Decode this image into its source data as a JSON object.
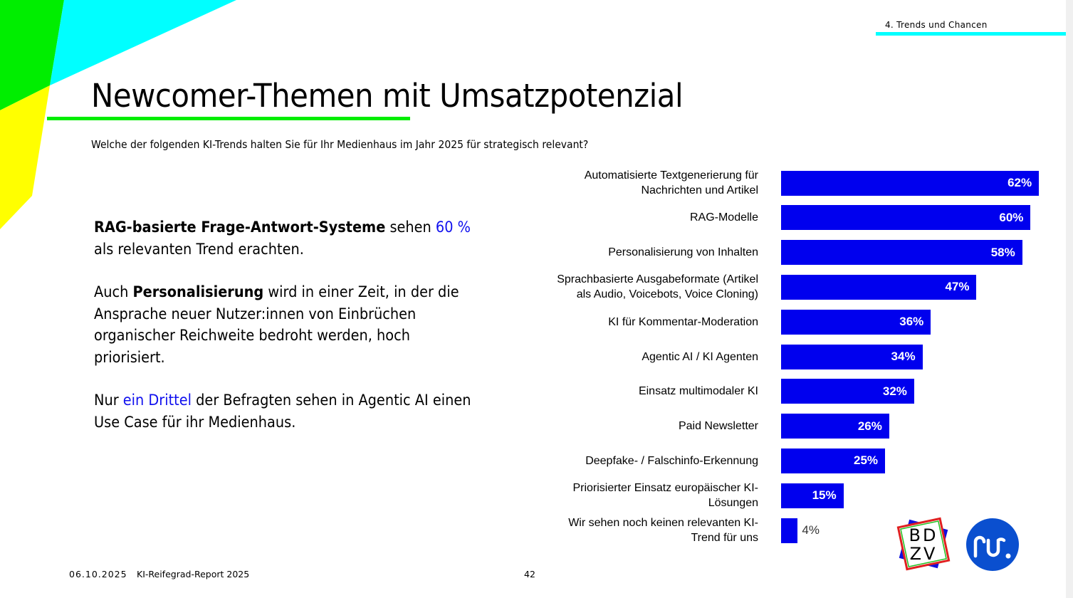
{
  "header": {
    "section": "4. Trends und Chancen",
    "title": "Newcomer-Themen mit Umsatzpotenzial",
    "question": "Welche der folgenden KI-Trends halten Sie für Ihr Medienhaus im Jahr 2025 für strategisch relevant?"
  },
  "body": {
    "p1": {
      "bold": "RAG-basierte Frage-Antwort-Systeme",
      "t1": " sehen ",
      "hl": "60 %",
      "t2": " als relevanten Trend erachten."
    },
    "p2": {
      "t1": "Auch ",
      "bold": "Personalisierung",
      "t2": " wird in einer Zeit, in der die Ansprache neuer Nutzer:innen von Einbrüchen organischer Reichweite bedroht werden, hoch priorisiert."
    },
    "p3": {
      "t1": "Nur ",
      "hl": "ein Drittel",
      "t2": " der Befragten sehen in Agentic AI einen Use Case für ihr Medienhaus."
    }
  },
  "chart_data": {
    "type": "bar",
    "orientation": "horizontal",
    "unit": "%",
    "bar_color": "#0000ee",
    "categories": [
      "Automatisierte Textgenerierung für\nNachrichten und Artikel",
      "RAG-Modelle",
      "Personalisierung von Inhalten",
      "Sprachbasierte Ausgabeformate (Artikel\nals Audio, Voicebots, Voice Cloning)",
      "KI für Kommentar-Moderation",
      "Agentic AI / KI Agenten",
      "Einsatz multimodaler KI",
      "Paid Newsletter",
      "Deepfake- / Falschinfo-Erkennung",
      "Priorisierter Einsatz europäischer KI-\nLösungen",
      "Wir sehen noch keinen relevanten KI-\nTrend für uns"
    ],
    "values": [
      62,
      60,
      58,
      47,
      36,
      34,
      32,
      26,
      25,
      15,
      4
    ],
    "labels": [
      "62%",
      "60%",
      "58%",
      "47%",
      "36%",
      "34%",
      "32%",
      "26%",
      "25%",
      "15%",
      "4%"
    ]
  },
  "footer": {
    "date": "06.10.2025",
    "report": "KI-Reifegrad-Report 2025",
    "page": "42"
  },
  "logos": {
    "bdzv": "BDZV",
    "rtr": "rtr."
  },
  "colors": {
    "green": "#00ee00",
    "cyan": "#00ffff",
    "yellow": "#ffff00",
    "accent": "#1010ee"
  }
}
